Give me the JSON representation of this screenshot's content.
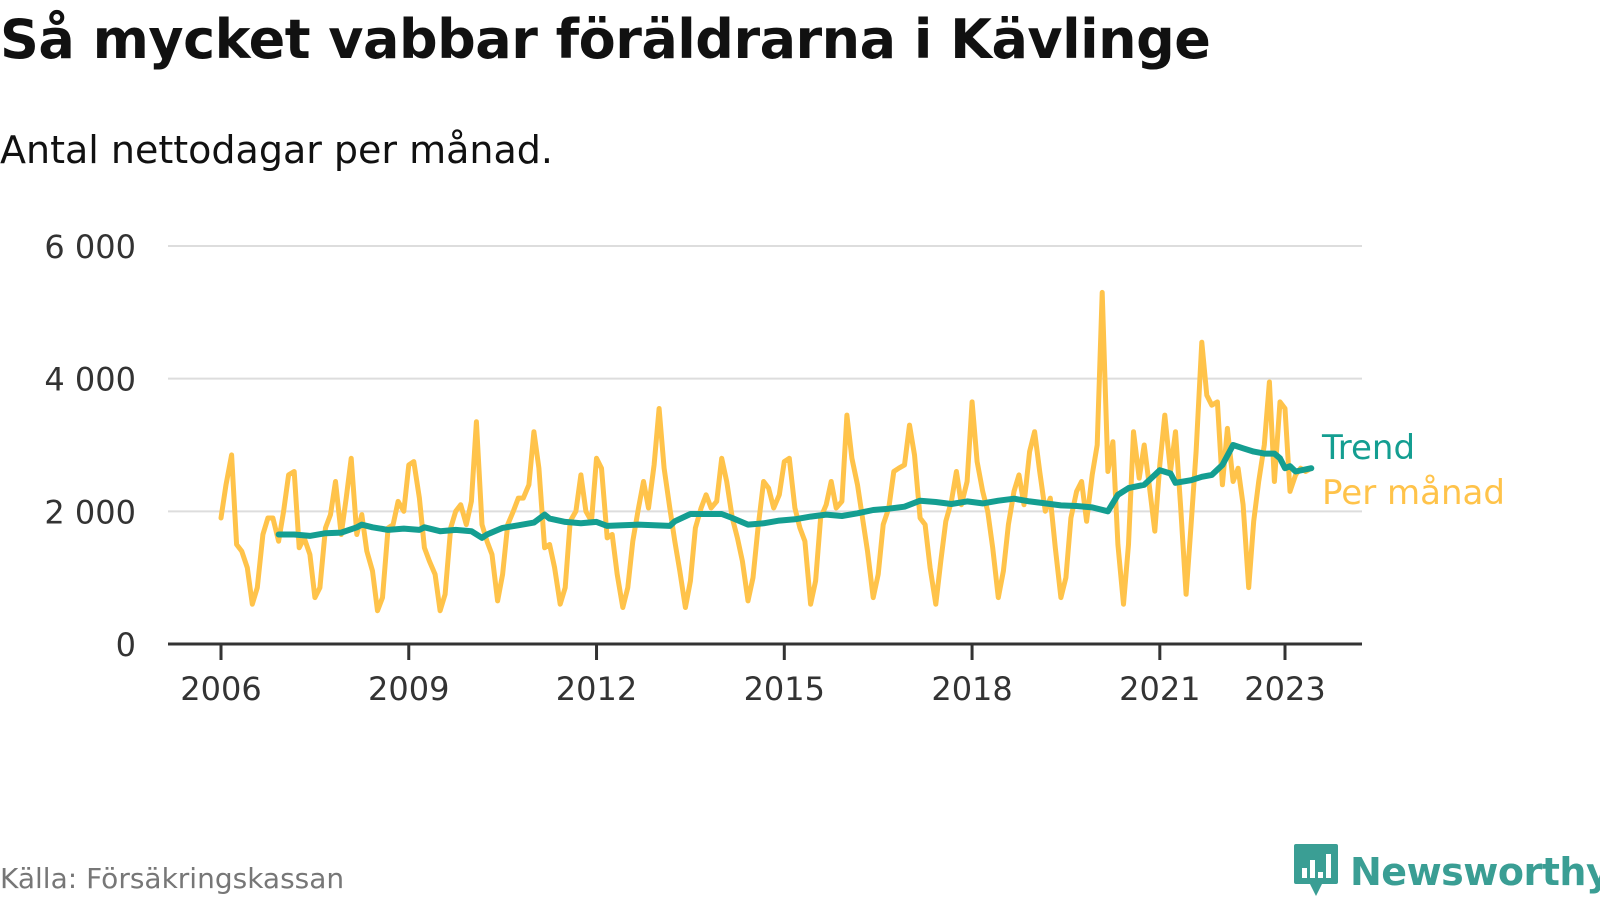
{
  "header": {
    "title": "Så mycket vabbar föräldrarna i Kävlinge",
    "subtitle": "Antal nettodagar per månad."
  },
  "footer": {
    "source": "Källa: Försäkringskassan",
    "brand": "Newsworthy",
    "brand_icon": "bar-chart-speech-bubble-icon"
  },
  "colors": {
    "trend": "#149e91",
    "monthly": "#ffc34a",
    "grid": "#dddddd",
    "axis": "#333333",
    "brand": "#3a9e94"
  },
  "chart_data": {
    "type": "line",
    "ylim": [
      0,
      6000
    ],
    "y_ticks": [
      0,
      2000,
      4000,
      6000
    ],
    "y_tick_labels": [
      "0",
      "2 000",
      "4 000",
      "6 000"
    ],
    "x_ticks": [
      2006,
      2009,
      2012,
      2015,
      2018,
      2021,
      2023
    ],
    "x_tick_labels": [
      "2006",
      "2009",
      "2012",
      "2015",
      "2018",
      "2021",
      "2023"
    ],
    "grid": true,
    "legend": "direct labels at line ends",
    "series": [
      {
        "name": "Per månad",
        "color": "#ffc34a",
        "x": [
          2006.0,
          2006.08,
          2006.17,
          2006.25,
          2006.33,
          2006.42,
          2006.5,
          2006.58,
          2006.67,
          2006.75,
          2006.83,
          2006.92,
          2007.0,
          2007.08,
          2007.17,
          2007.25,
          2007.33,
          2007.42,
          2007.5,
          2007.58,
          2007.67,
          2007.75,
          2007.83,
          2007.92,
          2008.0,
          2008.08,
          2008.17,
          2008.25,
          2008.33,
          2008.42,
          2008.5,
          2008.58,
          2008.67,
          2008.75,
          2008.83,
          2008.92,
          2009.0,
          2009.08,
          2009.17,
          2009.25,
          2009.33,
          2009.42,
          2009.5,
          2009.58,
          2009.67,
          2009.75,
          2009.83,
          2009.92,
          2010.0,
          2010.08,
          2010.17,
          2010.25,
          2010.33,
          2010.42,
          2010.5,
          2010.58,
          2010.67,
          2010.75,
          2010.83,
          2010.92,
          2011.0,
          2011.08,
          2011.17,
          2011.25,
          2011.33,
          2011.42,
          2011.5,
          2011.58,
          2011.67,
          2011.75,
          2011.83,
          2011.92,
          2012.0,
          2012.08,
          2012.17,
          2012.25,
          2012.33,
          2012.42,
          2012.5,
          2012.58,
          2012.67,
          2012.75,
          2012.83,
          2012.92,
          2013.0,
          2013.08,
          2013.17,
          2013.25,
          2013.33,
          2013.42,
          2013.5,
          2013.58,
          2013.67,
          2013.75,
          2013.83,
          2013.92,
          2014.0,
          2014.08,
          2014.17,
          2014.25,
          2014.33,
          2014.42,
          2014.5,
          2014.58,
          2014.67,
          2014.75,
          2014.83,
          2014.92,
          2015.0,
          2015.08,
          2015.17,
          2015.25,
          2015.33,
          2015.42,
          2015.5,
          2015.58,
          2015.67,
          2015.75,
          2015.83,
          2015.92,
          2016.0,
          2016.08,
          2016.17,
          2016.25,
          2016.33,
          2016.42,
          2016.5,
          2016.58,
          2016.67,
          2016.75,
          2016.83,
          2016.92,
          2017.0,
          2017.08,
          2017.17,
          2017.25,
          2017.33,
          2017.42,
          2017.5,
          2017.58,
          2017.67,
          2017.75,
          2017.83,
          2017.92,
          2018.0,
          2018.08,
          2018.17,
          2018.25,
          2018.33,
          2018.42,
          2018.5,
          2018.58,
          2018.67,
          2018.75,
          2018.83,
          2018.92,
          2019.0,
          2019.08,
          2019.17,
          2019.25,
          2019.33,
          2019.42,
          2019.5,
          2019.58,
          2019.67,
          2019.75,
          2019.83,
          2019.92,
          2020.0,
          2020.08,
          2020.17,
          2020.25,
          2020.33,
          2020.42,
          2020.5,
          2020.58,
          2020.67,
          2020.75,
          2020.83,
          2020.92,
          2021.0,
          2021.08,
          2021.17,
          2021.25,
          2021.33,
          2021.42,
          2021.5,
          2021.58,
          2021.67,
          2021.75,
          2021.83,
          2021.92,
          2022.0,
          2022.08,
          2022.17,
          2022.25,
          2022.33,
          2022.42,
          2022.5,
          2022.58,
          2022.67,
          2022.75,
          2022.83,
          2022.92,
          2023.0,
          2023.08,
          2023.17,
          2023.25,
          2023.33,
          2023.42
        ],
        "values": [
          1900,
          2400,
          2850,
          1500,
          1400,
          1150,
          600,
          850,
          1650,
          1900,
          1900,
          1550,
          2000,
          2550,
          2600,
          1450,
          1600,
          1350,
          700,
          850,
          1750,
          1950,
          2450,
          1650,
          2200,
          2800,
          1650,
          1950,
          1400,
          1100,
          500,
          700,
          1750,
          1800,
          2150,
          2000,
          2700,
          2750,
          2200,
          1450,
          1250,
          1050,
          500,
          750,
          1750,
          2000,
          2100,
          1800,
          2150,
          3350,
          1800,
          1550,
          1350,
          650,
          1050,
          1800,
          2000,
          2200,
          2200,
          2400,
          3200,
          2650,
          1450,
          1500,
          1150,
          600,
          850,
          1850,
          2000,
          2550,
          2000,
          1850,
          2800,
          2650,
          1600,
          1650,
          1050,
          550,
          850,
          1550,
          2050,
          2450,
          2050,
          2700,
          3550,
          2650,
          2050,
          1550,
          1100,
          550,
          950,
          1750,
          2050,
          2250,
          2050,
          2150,
          2800,
          2450,
          1900,
          1600,
          1250,
          650,
          1000,
          1750,
          2450,
          2350,
          2050,
          2250,
          2750,
          2800,
          2050,
          1750,
          1550,
          600,
          950,
          1900,
          2100,
          2450,
          2050,
          2150,
          3450,
          2800,
          2400,
          1900,
          1400,
          700,
          1050,
          1800,
          2050,
          2600,
          2650,
          2700,
          3300,
          2850,
          1900,
          1800,
          1150,
          600,
          1250,
          1850,
          2150,
          2600,
          2100,
          2450,
          3650,
          2750,
          2300,
          2000,
          1450,
          700,
          1100,
          1800,
          2300,
          2550,
          2100,
          2900,
          3200,
          2600,
          2000,
          2200,
          1450,
          700,
          1000,
          1900,
          2300,
          2450,
          1850,
          2550,
          3000,
          5300,
          2600,
          3050,
          1500,
          600,
          1500,
          3200,
          2500,
          3000,
          2400,
          1700,
          2700,
          3450,
          2600,
          3200,
          2100,
          750,
          1800,
          2900,
          4550,
          3750,
          3600,
          3650,
          2400,
          3250,
          2450,
          2650,
          2100,
          850,
          1850,
          2450,
          3000,
          3950,
          2450,
          3650,
          3550,
          2300,
          2550,
          2650,
          2600,
          2650
        ]
      },
      {
        "name": "Trend",
        "color": "#149e91",
        "x": [
          2006.92,
          2007.17,
          2007.42,
          2007.67,
          2007.92,
          2008.17,
          2008.25,
          2008.42,
          2008.67,
          2008.92,
          2009.17,
          2009.25,
          2009.5,
          2009.75,
          2010.0,
          2010.17,
          2010.25,
          2010.5,
          2010.75,
          2011.0,
          2011.17,
          2011.25,
          2011.5,
          2011.75,
          2012.0,
          2012.17,
          2012.42,
          2012.67,
          2012.92,
          2013.17,
          2013.25,
          2013.5,
          2013.75,
          2014.0,
          2014.17,
          2014.42,
          2014.67,
          2014.92,
          2015.17,
          2015.42,
          2015.67,
          2015.92,
          2016.17,
          2016.42,
          2016.67,
          2016.92,
          2017.17,
          2017.42,
          2017.67,
          2017.92,
          2018.17,
          2018.42,
          2018.67,
          2018.92,
          2019.17,
          2019.42,
          2019.67,
          2019.92,
          2020.17,
          2020.33,
          2020.5,
          2020.75,
          2020.92,
          2021.0,
          2021.17,
          2021.25,
          2021.5,
          2021.67,
          2021.83,
          2022.0,
          2022.17,
          2022.33,
          2022.5,
          2022.67,
          2022.83,
          2022.92,
          2023.0,
          2023.08,
          2023.17,
          2023.42
        ],
        "values": [
          1650,
          1650,
          1630,
          1670,
          1680,
          1760,
          1800,
          1760,
          1720,
          1740,
          1720,
          1760,
          1700,
          1720,
          1700,
          1600,
          1650,
          1750,
          1790,
          1830,
          1950,
          1890,
          1840,
          1820,
          1840,
          1780,
          1790,
          1800,
          1790,
          1780,
          1850,
          1960,
          1960,
          1960,
          1900,
          1800,
          1820,
          1860,
          1880,
          1920,
          1950,
          1930,
          1970,
          2020,
          2040,
          2070,
          2160,
          2140,
          2110,
          2150,
          2120,
          2160,
          2190,
          2150,
          2120,
          2090,
          2080,
          2060,
          2000,
          2250,
          2350,
          2400,
          2550,
          2620,
          2570,
          2430,
          2470,
          2520,
          2550,
          2700,
          3000,
          2950,
          2900,
          2870,
          2870,
          2800,
          2650,
          2680,
          2600,
          2650
        ]
      }
    ],
    "labels": [
      {
        "text": "Trend",
        "series": "Trend"
      },
      {
        "text": "Per månad",
        "series": "Per månad"
      }
    ]
  }
}
